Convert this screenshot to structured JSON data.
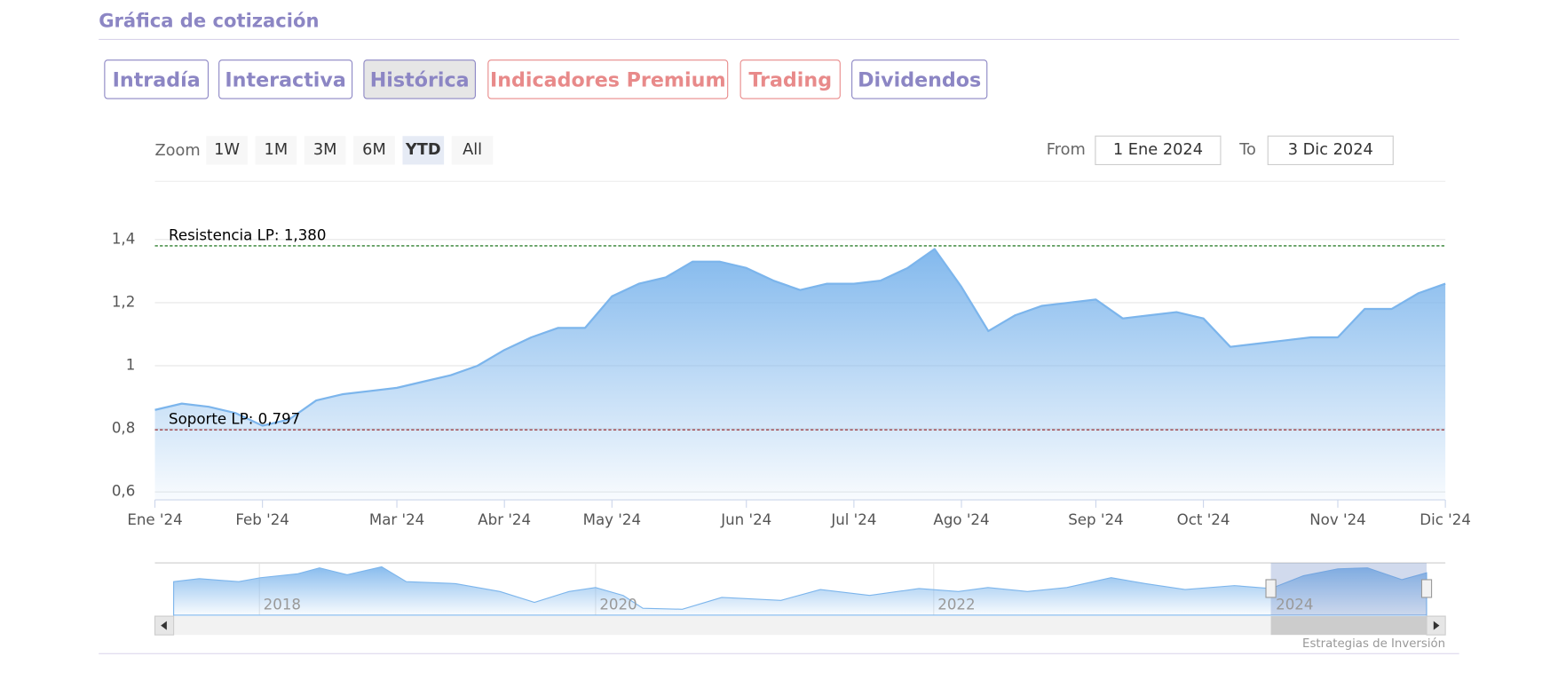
{
  "header": {
    "title": "Gráfica de cotización"
  },
  "tabs": [
    "Intradía",
    "Interactiva",
    "Histórica",
    "Indicadores Premium",
    "Trading",
    "Dividendos"
  ],
  "zoom": {
    "label": "Zoom",
    "buttons": [
      "1W",
      "1M",
      "3M",
      "6M",
      "YTD",
      "All"
    ]
  },
  "range": {
    "from_label": "From",
    "from": "1 Ene 2024",
    "to_label": "To",
    "to": "3 Dic 2024"
  },
  "navigator": {
    "labels": [
      "2018",
      "2020",
      "2022",
      "2024"
    ]
  },
  "credit": "Estrategias de Inversión",
  "chart_data": {
    "type": "area",
    "color": "#7cb5ec",
    "categories": [
      "Ene '24",
      null,
      null,
      null,
      "Feb '24",
      null,
      null,
      null,
      null,
      "Mar '24",
      null,
      null,
      null,
      "Abr '24",
      null,
      null,
      null,
      "May '24",
      null,
      null,
      null,
      null,
      "Jun '24",
      null,
      null,
      null,
      "Jul '24",
      null,
      null,
      null,
      "Ago '24",
      null,
      null,
      null,
      null,
      "Sep '24",
      null,
      null,
      null,
      "Oct '24",
      null,
      null,
      null,
      null,
      "Nov '24",
      null,
      null,
      null,
      "Dic '24"
    ],
    "values": [
      0.86,
      0.88,
      0.87,
      0.85,
      0.81,
      0.83,
      0.89,
      0.91,
      0.92,
      0.93,
      0.95,
      0.97,
      1.0,
      1.05,
      1.09,
      1.12,
      1.12,
      1.22,
      1.26,
      1.28,
      1.33,
      1.33,
      1.31,
      1.27,
      1.24,
      1.26,
      1.26,
      1.27,
      1.31,
      1.37,
      1.25,
      1.11,
      1.16,
      1.19,
      1.2,
      1.21,
      1.15,
      1.16,
      1.17,
      1.15,
      1.06,
      1.07,
      1.08,
      1.09,
      1.09,
      1.18,
      1.18,
      1.23,
      1.26
    ],
    "ylim": [
      0.575,
      1.55
    ],
    "yticks": [
      {
        "value": 0.6,
        "label": "0,6"
      },
      {
        "value": 0.8,
        "label": "0,8"
      },
      1,
      {
        "value": 1.2,
        "label": "1,2"
      },
      {
        "value": 1.4,
        "label": "1,4"
      }
    ],
    "grid": true,
    "annotations": [
      {
        "text": "Resistencia LP: 1,380",
        "value": 1.38,
        "color": "#006400"
      },
      {
        "text": "Soporte LP: 0,797",
        "value": 0.797,
        "color": "#8b0000"
      }
    ]
  }
}
